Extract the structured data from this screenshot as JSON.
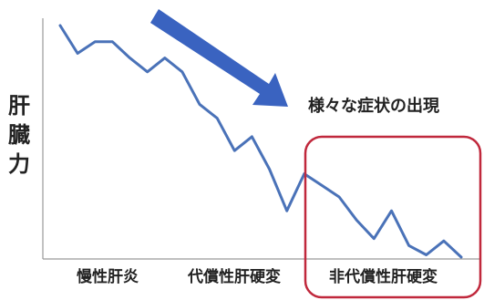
{
  "chart_data": {
    "type": "line",
    "title": "",
    "ylabel_chars": [
      "肝",
      "臓",
      "力"
    ],
    "categories": [
      "慢性肝炎",
      "代償性肝硬変",
      "非代償性肝硬変"
    ],
    "annotation": "様々な症状の出現",
    "series": [
      {
        "color": "#4a72b8",
        "values": [
          [
            0,
            100
          ],
          [
            1,
            88
          ],
          [
            2,
            93
          ],
          [
            3,
            93
          ],
          [
            4,
            86
          ],
          [
            5,
            80
          ],
          [
            6,
            86
          ],
          [
            7,
            80
          ],
          [
            8,
            66
          ],
          [
            9,
            60
          ],
          [
            10,
            46
          ],
          [
            11,
            52
          ],
          [
            12,
            38
          ],
          [
            13,
            20
          ],
          [
            14,
            36
          ],
          [
            15,
            31
          ],
          [
            16,
            26
          ],
          [
            17,
            16
          ],
          [
            18,
            8
          ],
          [
            19,
            20
          ],
          [
            20,
            5
          ],
          [
            21,
            1
          ],
          [
            22,
            7
          ],
          [
            23,
            0
          ]
        ]
      }
    ],
    "arrow_color": "#3a63c0",
    "highlight_color": "#c0283c",
    "grid": false
  }
}
